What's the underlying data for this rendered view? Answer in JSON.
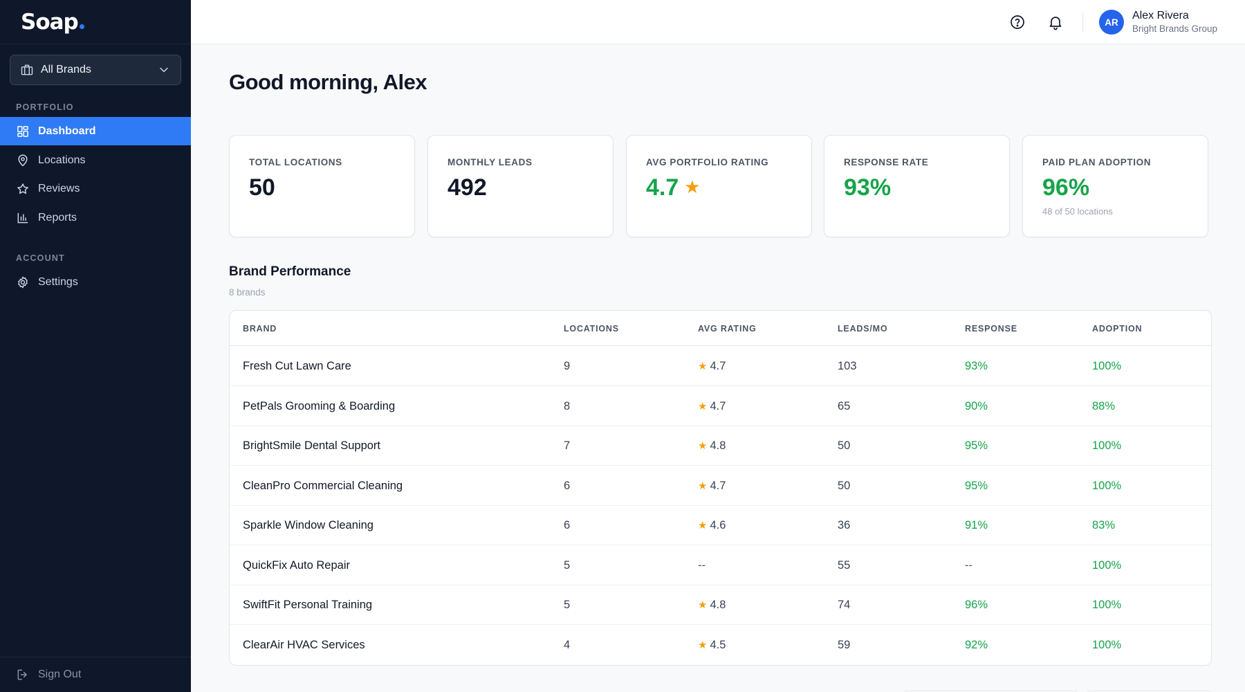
{
  "app": {
    "logo": "Soap"
  },
  "sidebar": {
    "brand_select": "All Brands",
    "sections": [
      {
        "label": "PORTFOLIO"
      },
      {
        "label": "ACCOUNT"
      }
    ],
    "items": [
      {
        "label": "Dashboard",
        "icon": "dashboard-icon",
        "active": true
      },
      {
        "label": "Locations",
        "icon": "map-pin-icon"
      },
      {
        "label": "Reviews",
        "icon": "star-icon"
      },
      {
        "label": "Reports",
        "icon": "bar-chart-icon"
      },
      {
        "label": "Settings",
        "icon": "gear-icon"
      }
    ],
    "sign_out": "Sign Out"
  },
  "header": {
    "user": {
      "initials": "AR",
      "name": "Alex Rivera",
      "org": "Bright Brands Group"
    }
  },
  "main": {
    "greeting": "Good morning, Alex",
    "stats": [
      {
        "label": "TOTAL LOCATIONS",
        "value": "50"
      },
      {
        "label": "MONTHLY LEADS",
        "value": "492"
      },
      {
        "label": "AVG PORTFOLIO RATING",
        "value": "4.7",
        "star": "★"
      },
      {
        "label": "RESPONSE RATE",
        "value": "93%"
      },
      {
        "label": "PAID PLAN ADOPTION",
        "value": "96%",
        "sub": "48 of 50 locations"
      }
    ],
    "brand_performance": {
      "title": "Brand Performance",
      "subtitle": "8 brands",
      "columns": [
        "BRAND",
        "LOCATIONS",
        "AVG RATING",
        "LEADS/MO",
        "RESPONSE",
        "ADOPTION"
      ],
      "rows": [
        {
          "brand": "Fresh Cut Lawn Care",
          "locations": "9",
          "rating": "4.7",
          "leads": "103",
          "response": "93%",
          "adoption": "100%"
        },
        {
          "brand": "PetPals Grooming & Boarding",
          "locations": "8",
          "rating": "4.7",
          "leads": "65",
          "response": "90%",
          "adoption": "88%"
        },
        {
          "brand": "BrightSmile Dental Support",
          "locations": "7",
          "rating": "4.8",
          "leads": "50",
          "response": "95%",
          "adoption": "100%"
        },
        {
          "brand": "CleanPro Commercial Cleaning",
          "locations": "6",
          "rating": "4.7",
          "leads": "50",
          "response": "95%",
          "adoption": "100%"
        },
        {
          "brand": "Sparkle Window Cleaning",
          "locations": "6",
          "rating": "4.6",
          "leads": "36",
          "response": "91%",
          "adoption": "83%"
        },
        {
          "brand": "QuickFix Auto Repair",
          "locations": "5",
          "rating": "--",
          "leads": "55",
          "response": "--",
          "adoption": "100%"
        },
        {
          "brand": "SwiftFit Personal Training",
          "locations": "5",
          "rating": "4.8",
          "leads": "74",
          "response": "96%",
          "adoption": "100%"
        },
        {
          "brand": "ClearAir HVAC Services",
          "locations": "4",
          "rating": "4.5",
          "leads": "59",
          "response": "92%",
          "adoption": "100%"
        }
      ]
    }
  },
  "colors": {
    "sidebar_bg": "#0f172a",
    "accent": "#2f7bf5",
    "positive": "#16a34a",
    "star": "#f59e0b"
  }
}
